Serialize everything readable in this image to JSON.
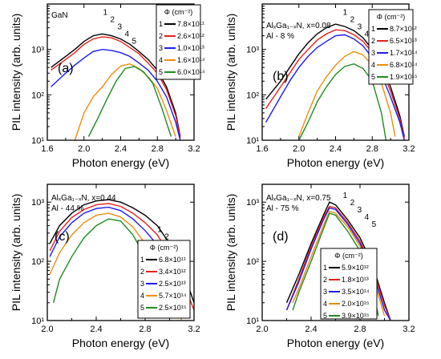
{
  "colors": {
    "series": [
      "#000000",
      "#e8211b",
      "#1c1cf0",
      "#f08c0c",
      "#1e8c1e"
    ],
    "axis": "#000000"
  },
  "chart_data": [
    {
      "type": "line",
      "panel_label": "(a)",
      "material": {
        "lines": [
          "GaN"
        ]
      },
      "xlabel": "Photon energy (eV)",
      "ylabel": "PIL intensity (arb. units)",
      "xlim": [
        1.6,
        3.2
      ],
      "ylim": [
        10,
        10000
      ],
      "yscale": "log",
      "xticks": [
        "1.6",
        "2.0",
        "2.4",
        "2.8",
        "3.2"
      ],
      "yticks": [
        "10¹",
        "10²",
        "10³"
      ],
      "legend": {
        "title": "Φ (cm⁻²)",
        "position": "top-right"
      },
      "series": [
        {
          "name": "7.8×10¹¹",
          "curve_label": "1",
          "x": [
            1.64,
            1.8,
            1.9,
            2.0,
            2.1,
            2.2,
            2.3,
            2.4,
            2.5,
            2.6,
            2.7,
            2.8,
            2.9,
            3.0,
            3.05
          ],
          "y": [
            400,
            700,
            1000,
            1500,
            2000,
            2200,
            2000,
            1700,
            1300,
            900,
            600,
            350,
            150,
            40,
            12
          ]
        },
        {
          "name": "2.6×10¹²",
          "curve_label": "2",
          "x": [
            1.64,
            1.8,
            1.9,
            2.0,
            2.1,
            2.2,
            2.3,
            2.4,
            2.5,
            2.6,
            2.7,
            2.8,
            2.9,
            3.0,
            3.05
          ],
          "y": [
            350,
            600,
            850,
            1300,
            1700,
            1900,
            1800,
            1500,
            1100,
            800,
            500,
            300,
            130,
            35,
            11
          ]
        },
        {
          "name": "1.0×10¹³",
          "curve_label": "3",
          "x": [
            1.64,
            1.8,
            1.9,
            2.0,
            2.1,
            2.2,
            2.3,
            2.4,
            2.5,
            2.6,
            2.7,
            2.8,
            2.9,
            3.0,
            3.05
          ],
          "y": [
            150,
            300,
            450,
            650,
            900,
            1000,
            950,
            850,
            700,
            500,
            350,
            200,
            90,
            25,
            10
          ]
        },
        {
          "name": "1.6×10¹⁴",
          "curve_label": "4",
          "x": [
            1.9,
            2.0,
            2.1,
            2.2,
            2.3,
            2.4,
            2.5,
            2.6,
            2.7,
            2.8,
            2.9,
            3.0
          ],
          "y": [
            10,
            40,
            90,
            150,
            280,
            430,
            480,
            380,
            250,
            140,
            45,
            12
          ]
        },
        {
          "name": "6.0×10¹⁴",
          "curve_label": "5",
          "x": [
            2.05,
            2.15,
            2.25,
            2.35,
            2.45,
            2.55,
            2.65,
            2.75,
            2.85,
            2.95
          ],
          "y": [
            12,
            30,
            80,
            200,
            380,
            420,
            320,
            180,
            50,
            12
          ]
        }
      ]
    },
    {
      "type": "line",
      "panel_label": "(b)",
      "material": {
        "lines": [
          "AlₓGa₁₋ₓN, x=0.08",
          "Al - 8 %"
        ]
      },
      "xlabel": "Photon energy (eV)",
      "ylabel": "PIL intensity (arb. units)",
      "xlim": [
        1.6,
        3.2
      ],
      "ylim": [
        10,
        10000
      ],
      "yscale": "log",
      "xticks": [
        "1.6",
        "2.0",
        "2.4",
        "2.8",
        "3.2"
      ],
      "yticks": [
        "10¹",
        "10²",
        "10³"
      ],
      "legend": {
        "title": "Φ (cm⁻²)",
        "position": "top-right"
      },
      "series": [
        {
          "name": "8.7×10¹²",
          "curve_label": "1",
          "x": [
            1.64,
            1.8,
            1.9,
            2.0,
            2.1,
            2.2,
            2.3,
            2.4,
            2.5,
            2.6,
            2.7,
            2.8,
            2.9,
            3.0,
            3.1,
            3.15
          ],
          "y": [
            80,
            200,
            400,
            800,
            1400,
            2200,
            3000,
            3600,
            3200,
            2600,
            1800,
            1000,
            450,
            150,
            35,
            12
          ]
        },
        {
          "name": "6.5×10¹³",
          "curve_label": "2",
          "x": [
            1.64,
            1.8,
            1.9,
            2.0,
            2.1,
            2.2,
            2.3,
            2.4,
            2.5,
            2.6,
            2.7,
            2.8,
            2.9,
            3.0,
            3.1,
            3.15
          ],
          "y": [
            50,
            150,
            300,
            600,
            1000,
            1600,
            2200,
            2700,
            2600,
            2100,
            1500,
            850,
            380,
            120,
            30,
            11
          ]
        },
        {
          "name": "1.7×10¹⁴",
          "curve_label": "3",
          "x": [
            1.64,
            1.8,
            1.9,
            2.0,
            2.1,
            2.2,
            2.3,
            2.4,
            2.5,
            2.6,
            2.7,
            2.8,
            2.9,
            3.0,
            3.1,
            3.15
          ],
          "y": [
            25,
            90,
            200,
            400,
            700,
            1100,
            1500,
            2000,
            2100,
            1700,
            1200,
            650,
            280,
            90,
            25,
            10
          ]
        },
        {
          "name": "6.8×10¹⁴",
          "curve_label": "4",
          "x": [
            2.0,
            2.1,
            2.2,
            2.3,
            2.4,
            2.5,
            2.6,
            2.7,
            2.8,
            2.9,
            3.0,
            3.05
          ],
          "y": [
            12,
            40,
            120,
            250,
            450,
            700,
            900,
            750,
            450,
            180,
            40,
            12
          ]
        },
        {
          "name": "1.9×10¹⁵",
          "curve_label": "5",
          "x": [
            2.0,
            2.1,
            2.2,
            2.3,
            2.4,
            2.5,
            2.6,
            2.7,
            2.8,
            2.9,
            2.95
          ],
          "y": [
            10,
            25,
            70,
            150,
            280,
            420,
            480,
            380,
            200,
            40,
            10
          ]
        }
      ]
    },
    {
      "type": "line",
      "panel_label": "(c)",
      "material": {
        "lines": [
          "AlₓGa₁₋ₓN, x=0.44",
          "Al - 44 %"
        ]
      },
      "xlabel": "Photon energy (eV)",
      "ylabel": "PIL intensity (arb. units)",
      "xlim": [
        2.0,
        3.2
      ],
      "ylim": [
        10,
        2000
      ],
      "yscale": "log",
      "xticks": [
        "2.0",
        "2.4",
        "2.8",
        "3.2"
      ],
      "yticks": [
        "10¹",
        "10²",
        "10³"
      ],
      "legend": {
        "title": "Φ (cm⁻²)",
        "position": "bottom-right"
      },
      "series": [
        {
          "name": "6.8×10¹¹",
          "curve_label": "1",
          "x": [
            2.02,
            2.1,
            2.2,
            2.3,
            2.4,
            2.5,
            2.6,
            2.7,
            2.8,
            2.9,
            3.0,
            3.1,
            3.2
          ],
          "y": [
            200,
            400,
            650,
            900,
            1050,
            1100,
            1000,
            800,
            600,
            400,
            200,
            80,
            20
          ]
        },
        {
          "name": "3.4×10¹²",
          "curve_label": "2",
          "x": [
            2.02,
            2.1,
            2.2,
            2.3,
            2.4,
            2.5,
            2.6,
            2.7,
            2.8,
            2.9,
            3.0,
            3.1,
            3.2
          ],
          "y": [
            150,
            320,
            550,
            750,
            900,
            950,
            850,
            650,
            450,
            280,
            130,
            50,
            15
          ]
        },
        {
          "name": "2.5×10¹³",
          "curve_label": "3",
          "x": [
            2.02,
            2.1,
            2.2,
            2.3,
            2.4,
            2.5,
            2.6,
            2.7,
            2.8,
            2.9,
            3.0,
            3.1,
            3.15
          ],
          "y": [
            120,
            260,
            450,
            650,
            780,
            820,
            720,
            520,
            330,
            190,
            80,
            30,
            12
          ]
        },
        {
          "name": "5.7×10¹⁴",
          "curve_label": "4",
          "x": [
            2.02,
            2.1,
            2.2,
            2.3,
            2.4,
            2.5,
            2.6,
            2.7,
            2.8,
            2.9,
            3.0,
            3.1
          ],
          "y": [
            60,
            140,
            280,
            450,
            600,
            650,
            560,
            380,
            200,
            90,
            30,
            10
          ]
        },
        {
          "name": "2.5×10¹⁵",
          "curve_label": "5",
          "x": [
            2.05,
            2.1,
            2.2,
            2.3,
            2.4,
            2.5,
            2.6,
            2.7,
            2.8,
            2.9,
            3.0
          ],
          "y": [
            20,
            50,
            120,
            250,
            400,
            520,
            480,
            280,
            120,
            40,
            12
          ]
        }
      ]
    },
    {
      "type": "line",
      "panel_label": "(d)",
      "material": {
        "lines": [
          "AlₓGa₁₋ₓN, x=0.75",
          "Al - 75 %"
        ]
      },
      "xlabel": "Photon energy (eV)",
      "ylabel": "PIL intensity (arb. units)",
      "xlim": [
        2.0,
        3.2
      ],
      "ylim": [
        10,
        2000
      ],
      "yscale": "log",
      "xticks": [
        "2.0",
        "2.4",
        "2.8",
        "3.2"
      ],
      "yticks": [
        "10¹",
        "10²",
        "10³"
      ],
      "legend": {
        "title": "Φ (cm⁻²)",
        "position": "bottom-center"
      },
      "series": [
        {
          "name": "5.9×10¹²",
          "curve_label": "1",
          "x": [
            2.2,
            2.3,
            2.4,
            2.5,
            2.55,
            2.6,
            2.7,
            2.8,
            2.9,
            3.0,
            3.05
          ],
          "y": [
            20,
            60,
            200,
            600,
            1000,
            900,
            500,
            250,
            90,
            20,
            10
          ]
        },
        {
          "name": "1.8×10¹³",
          "curve_label": "2",
          "x": [
            2.2,
            2.3,
            2.4,
            2.5,
            2.55,
            2.6,
            2.7,
            2.8,
            2.9,
            3.0,
            3.05
          ],
          "y": [
            15,
            50,
            180,
            550,
            850,
            800,
            450,
            220,
            80,
            18,
            10
          ]
        },
        {
          "name": "3.5×10¹⁴",
          "curve_label": "3",
          "x": [
            2.2,
            2.3,
            2.4,
            2.5,
            2.55,
            2.6,
            2.7,
            2.8,
            2.9,
            3.0,
            3.05
          ],
          "y": [
            15,
            45,
            160,
            500,
            800,
            750,
            420,
            200,
            70,
            15,
            10
          ]
        },
        {
          "name": "2.0×10¹⁵",
          "curve_label": "4",
          "x": [
            2.25,
            2.3,
            2.4,
            2.5,
            2.55,
            2.6,
            2.7,
            2.8,
            2.9,
            3.0
          ],
          "y": [
            20,
            35,
            120,
            400,
            700,
            650,
            380,
            180,
            60,
            12
          ]
        },
        {
          "name": "3.9×10¹⁵",
          "curve_label": "5",
          "x": [
            2.25,
            2.3,
            2.4,
            2.5,
            2.55,
            2.6,
            2.7,
            2.8,
            2.9,
            2.95
          ],
          "y": [
            15,
            30,
            100,
            350,
            650,
            600,
            320,
            150,
            40,
            12
          ]
        }
      ]
    }
  ]
}
